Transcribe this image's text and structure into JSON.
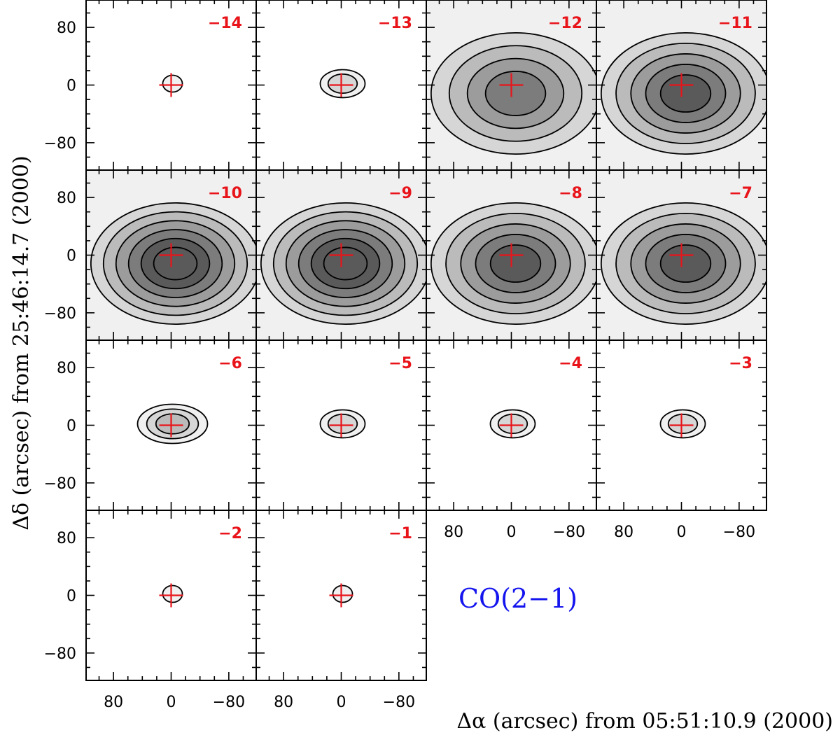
{
  "chart_data": {
    "type": "contour-map-grid",
    "line_label": "CO(2−1)",
    "xlabel": "Δα (arcsec)   from 05:51:10.9 (2000)",
    "ylabel": "Δδ (arcsec)  from 25:46:14.7 (2000)",
    "xlim": [
      118,
      -118
    ],
    "ylim": [
      -118,
      118
    ],
    "x_ticks": [
      "80",
      "0",
      "−80"
    ],
    "y_ticks": [
      "80",
      "0",
      "−80"
    ],
    "x_tick_values": [
      80,
      0,
      -80
    ],
    "y_tick_values": [
      80,
      0,
      -80
    ],
    "reference_position": {
      "x": 0,
      "y": 0,
      "marker": "red-cross"
    },
    "panels": [
      {
        "velocity": "−14",
        "row": 0,
        "col": 0,
        "level": 0
      },
      {
        "velocity": "−13",
        "row": 0,
        "col": 1,
        "level": 1
      },
      {
        "velocity": "−12",
        "row": 0,
        "col": 2,
        "level": 3
      },
      {
        "velocity": "−11",
        "row": 0,
        "col": 3,
        "level": 4
      },
      {
        "velocity": "−10",
        "row": 1,
        "col": 0,
        "level": 5
      },
      {
        "velocity": "−9",
        "row": 1,
        "col": 1,
        "level": 5
      },
      {
        "velocity": "−8",
        "row": 1,
        "col": 2,
        "level": 4
      },
      {
        "velocity": "−7",
        "row": 1,
        "col": 3,
        "level": 4
      },
      {
        "velocity": "−6",
        "row": 2,
        "col": 0,
        "level": 2
      },
      {
        "velocity": "−5",
        "row": 2,
        "col": 1,
        "level": 1
      },
      {
        "velocity": "−4",
        "row": 2,
        "col": 2,
        "level": 1
      },
      {
        "velocity": "−3",
        "row": 2,
        "col": 3,
        "level": 1
      },
      {
        "velocity": "−2",
        "row": 3,
        "col": 0,
        "level": 0
      },
      {
        "velocity": "−1",
        "row": 3,
        "col": 1,
        "level": 0
      }
    ],
    "colors": {
      "velocity_label": "#e8141a",
      "cross": "#e8141a",
      "line_label": "#1414ee"
    }
  }
}
